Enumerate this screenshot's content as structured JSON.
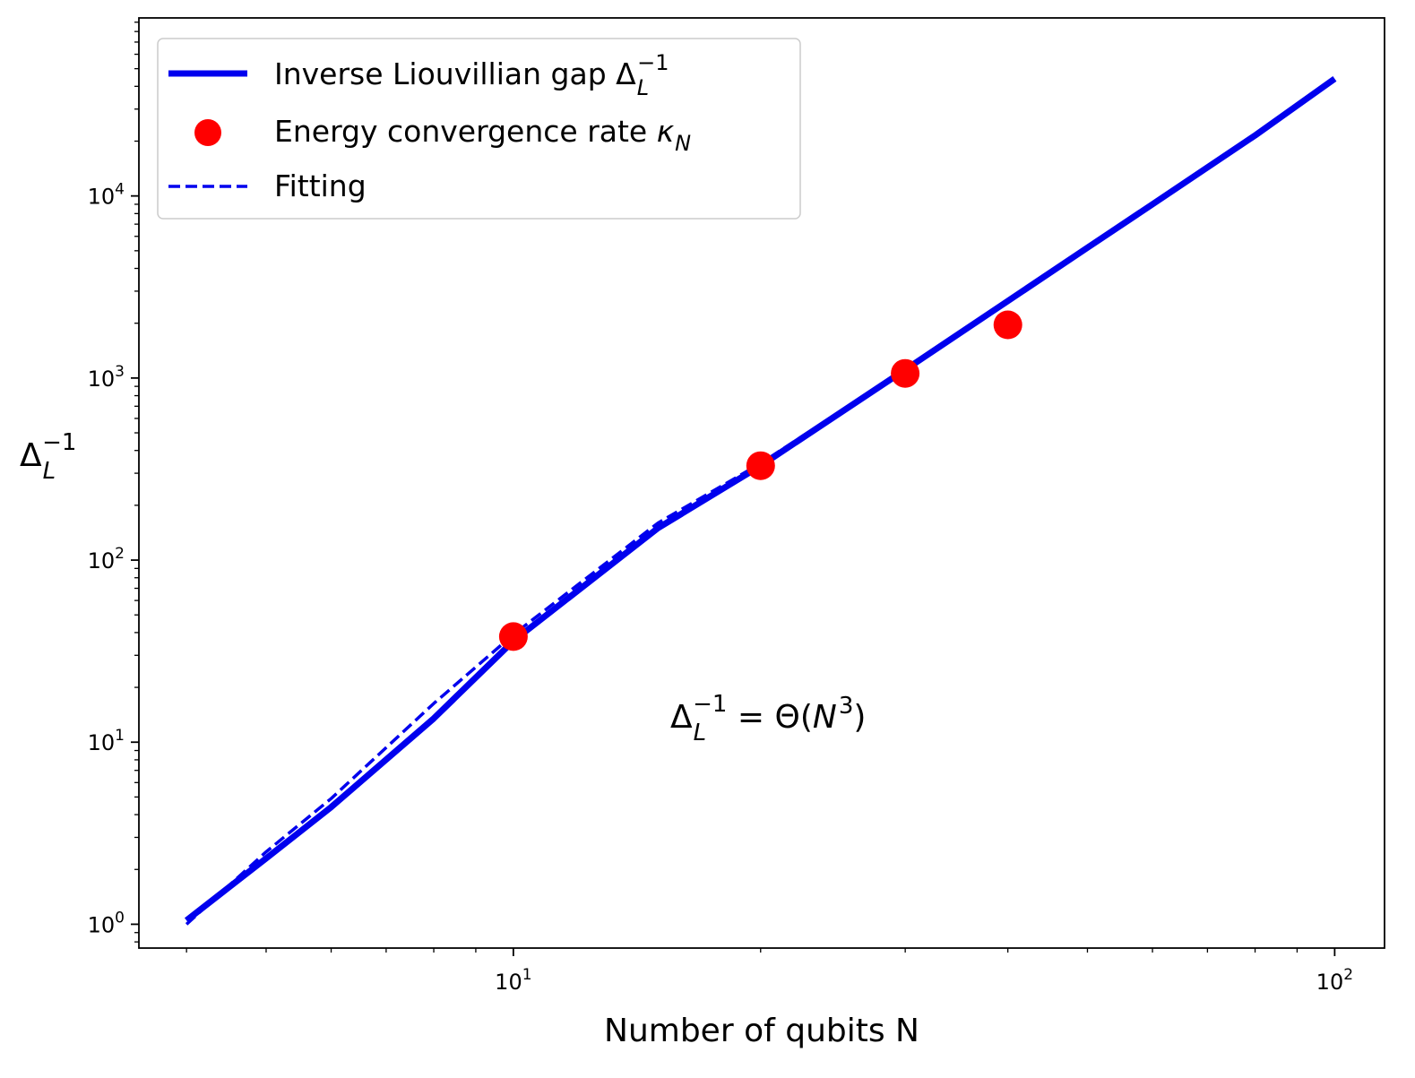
{
  "chart_data": {
    "type": "line",
    "xlabel": "Number of qubits N",
    "ylabel": {
      "base": "Δ",
      "sub": "L",
      "sup": "−1"
    },
    "x_scale": "log",
    "y_scale": "log",
    "xlim": [
      3.5,
      115
    ],
    "ylim": [
      0.74,
      95000
    ],
    "grid": false,
    "legend_position": "top-left",
    "x_ticks": [
      {
        "value": 10,
        "base": "10",
        "exp": "1"
      },
      {
        "value": 100,
        "base": "10",
        "exp": "2"
      }
    ],
    "y_ticks": [
      {
        "value": 1,
        "base": "10",
        "exp": "0"
      },
      {
        "value": 10,
        "base": "10",
        "exp": "1"
      },
      {
        "value": 100,
        "base": "10",
        "exp": "2"
      },
      {
        "value": 1000,
        "base": "10",
        "exp": "3"
      },
      {
        "value": 10000,
        "base": "10",
        "exp": "4"
      }
    ],
    "series": [
      {
        "name": "Inverse Liouvillian gap Δ_L^{-1}",
        "legend": {
          "text": "Inverse Liouvillian gap ",
          "math_base": "Δ",
          "math_sub": "L",
          "math_sup": "−1"
        },
        "kind": "line",
        "color": "#0000ee",
        "style": "solid",
        "x": [
          4,
          5,
          6,
          8,
          10,
          15,
          20,
          30,
          40,
          50,
          60,
          80,
          100
        ],
        "y": [
          1.05,
          2.3,
          4.4,
          13.5,
          36,
          150,
          330,
          1110,
          2650,
          5200,
          9000,
          21500,
          44000
        ]
      },
      {
        "name": "Energy convergence rate κ_N",
        "legend": {
          "text": "Energy convergence rate ",
          "math_base": "κ",
          "math_sub": "N",
          "math_sup": ""
        },
        "kind": "scatter",
        "color": "#ff0000",
        "x": [
          10,
          20,
          30,
          40
        ],
        "y": [
          38,
          330,
          1060,
          1960
        ]
      },
      {
        "name": "Fitting",
        "legend": {
          "text": "Fitting",
          "math_base": "",
          "math_sub": "",
          "math_sup": ""
        },
        "kind": "line",
        "color": "#0000ee",
        "style": "dashed",
        "x": [
          4,
          5,
          6,
          8,
          10,
          15,
          20,
          30,
          40,
          50,
          60,
          80,
          100
        ],
        "y": [
          1.0,
          2.5,
          4.9,
          16.3,
          39,
          160,
          340,
          1120,
          2650,
          5170,
          8940,
          21200,
          44000
        ]
      }
    ],
    "annotations": [
      {
        "base": "Δ",
        "sub": "L",
        "sup": "−1",
        "rest": " = Θ(",
        "var": "N",
        "var_sup": "3",
        "close": ")"
      }
    ]
  }
}
